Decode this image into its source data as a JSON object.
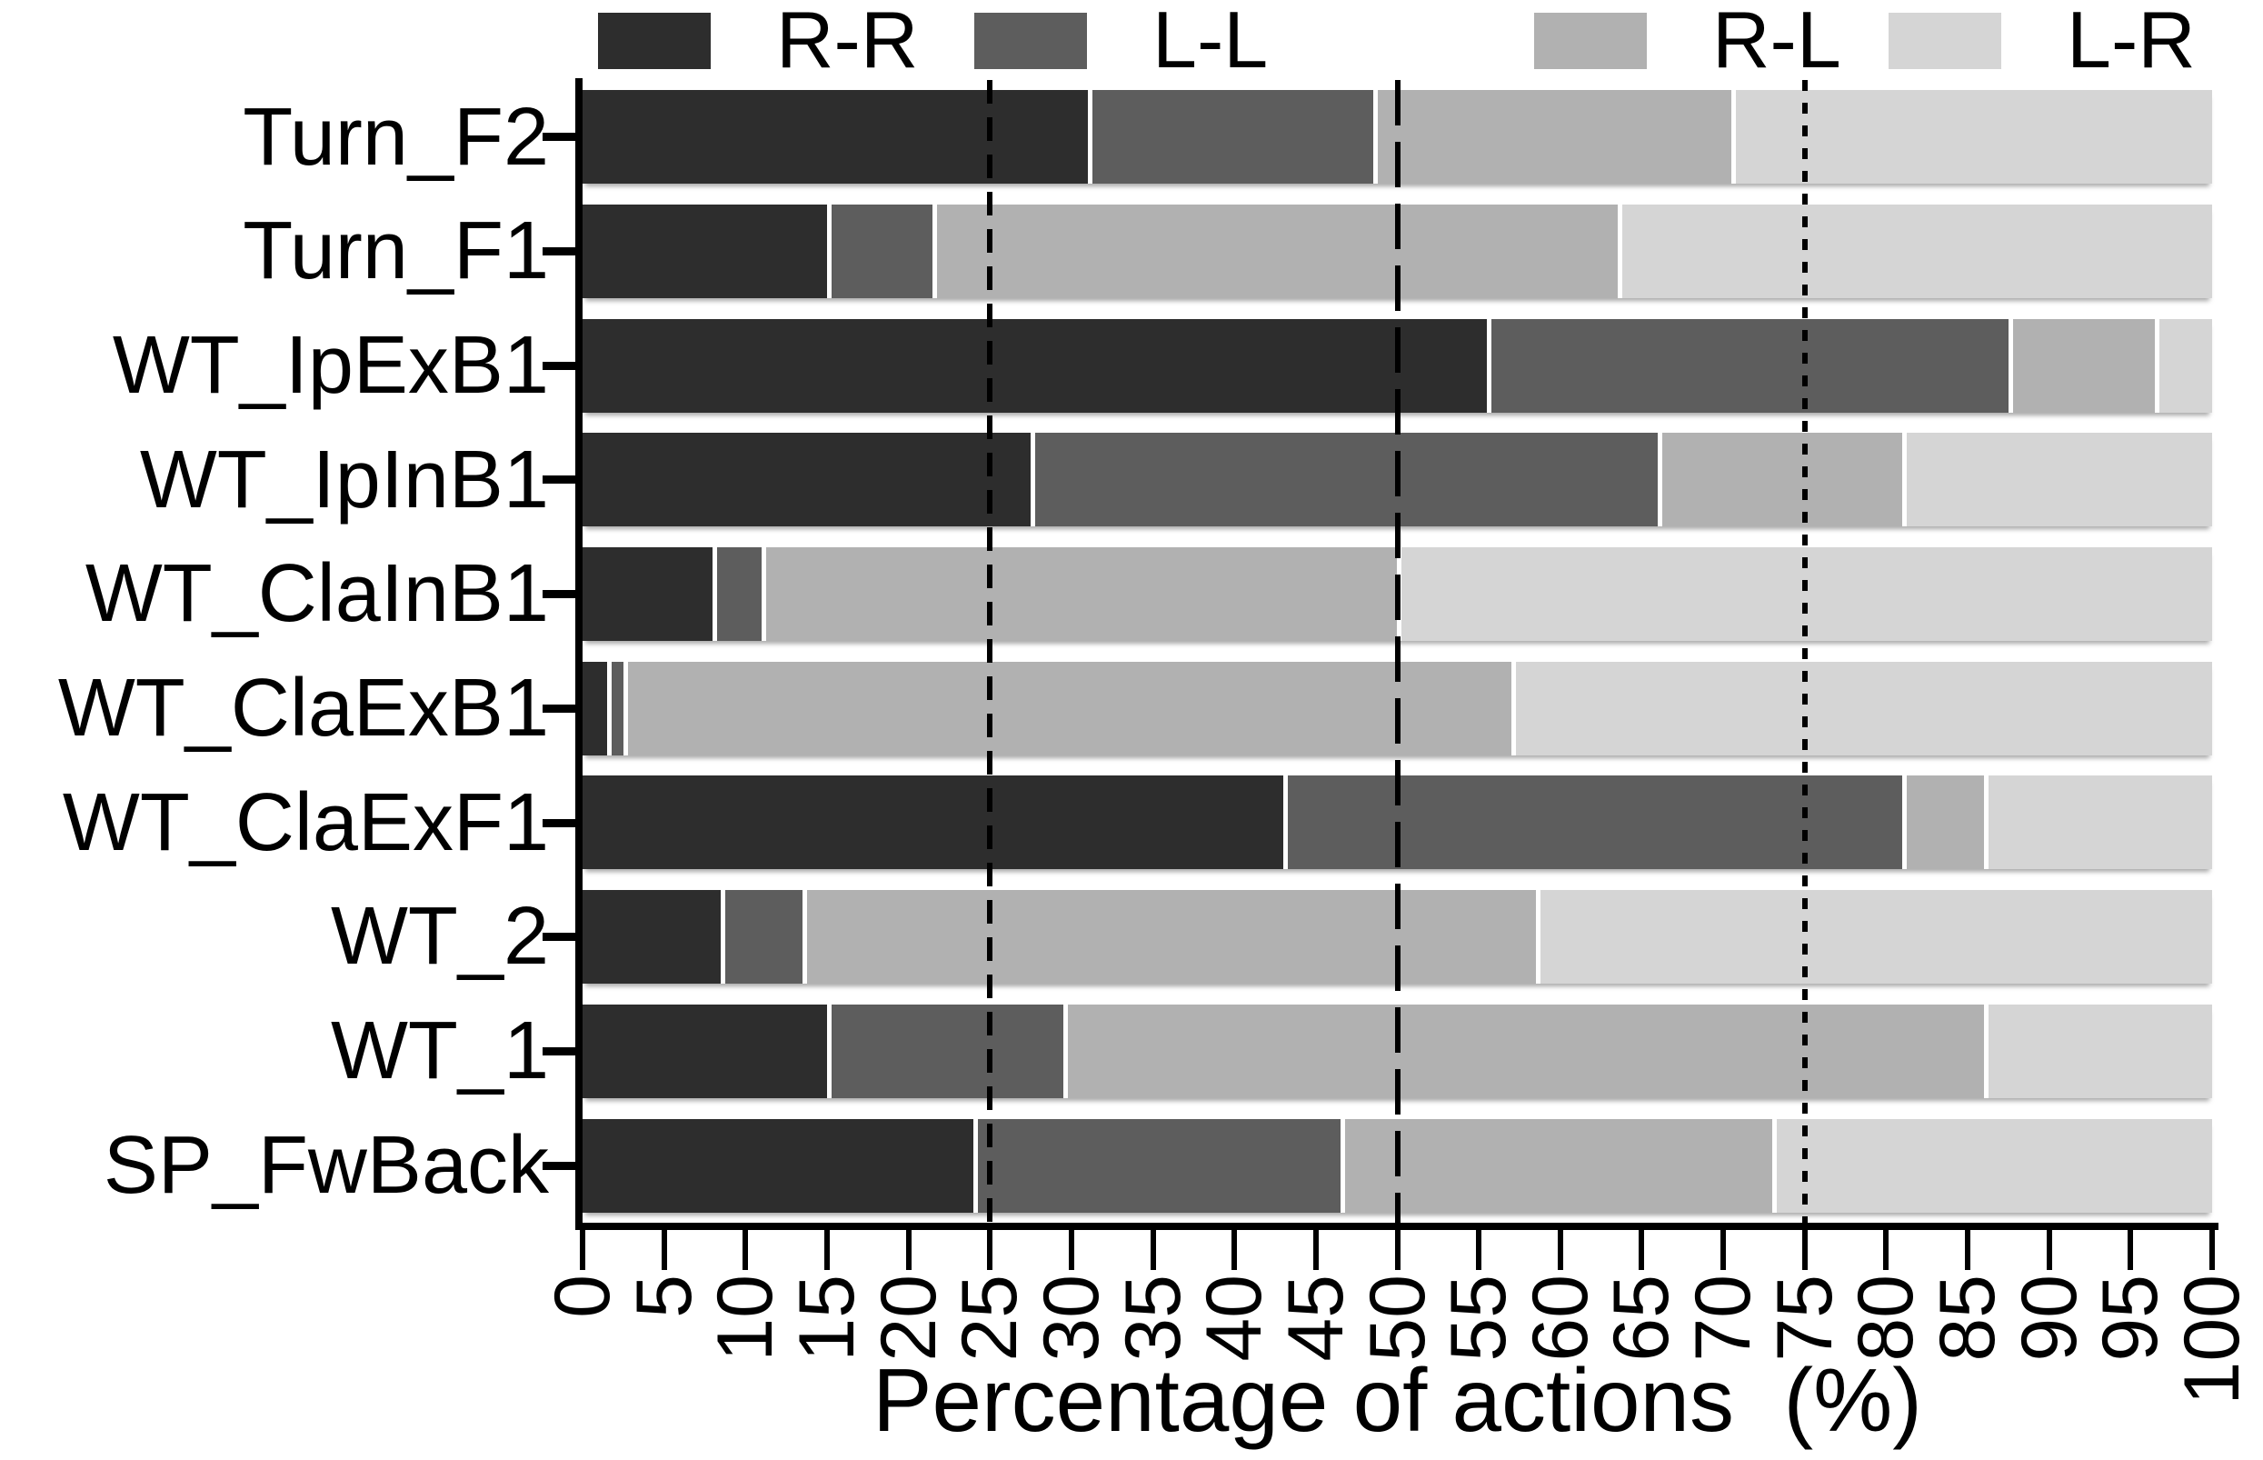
{
  "chart_data": {
    "type": "bar",
    "orientation": "horizontal",
    "stacked": true,
    "xlabel": "Percentage of actions  (%)",
    "ylabel": "",
    "xlim": [
      0,
      100
    ],
    "grid": false,
    "legend_position": "top",
    "reference_lines": [
      {
        "value": 25,
        "style": "medium"
      },
      {
        "value": 50,
        "style": "long"
      },
      {
        "value": 75,
        "style": "short"
      }
    ],
    "xticks": [
      0,
      5,
      10,
      15,
      20,
      25,
      30,
      35,
      40,
      45,
      50,
      55,
      60,
      65,
      70,
      75,
      80,
      85,
      90,
      95,
      100
    ],
    "xtick_labels": [
      "0",
      "5",
      "10",
      "15",
      "20",
      "25",
      "30",
      "35",
      "40",
      "45",
      "50",
      "55",
      "60",
      "65",
      "70",
      "75",
      "80",
      "85",
      "90",
      "95",
      "100"
    ],
    "categories": [
      "Turn_F2",
      "Turn_F1",
      "WT_IpExB1",
      "WT_IpInB1",
      "WT_ClaInB1",
      "WT_ClaExB1",
      "WT_ClaExF1",
      "WT_2",
      "WT_1",
      "SP_FwBack"
    ],
    "series": [
      {
        "name": "R-R",
        "color": "#2d2d2d",
        "values": [
          31,
          15,
          55.5,
          27.5,
          8,
          1.5,
          43,
          8.5,
          15,
          24
        ]
      },
      {
        "name": "L-L",
        "color": "#5d5d5d",
        "values": [
          17.5,
          6.5,
          32,
          38.5,
          3,
          1,
          38,
          5,
          14.5,
          22.5
        ]
      },
      {
        "name": "R-L",
        "color": "#b1b1b1",
        "values": [
          22,
          42,
          9,
          15,
          39,
          54.5,
          5,
          45,
          56.5,
          26.5
        ]
      },
      {
        "name": "L-R",
        "color": "#d5d5d5",
        "values": [
          29.5,
          36.5,
          3.5,
          19,
          50,
          43,
          14,
          41.5,
          14,
          27
        ]
      }
    ],
    "colors": {
      "axis": "#000000",
      "background": "#ffffff",
      "separator": "#ffffff"
    }
  }
}
